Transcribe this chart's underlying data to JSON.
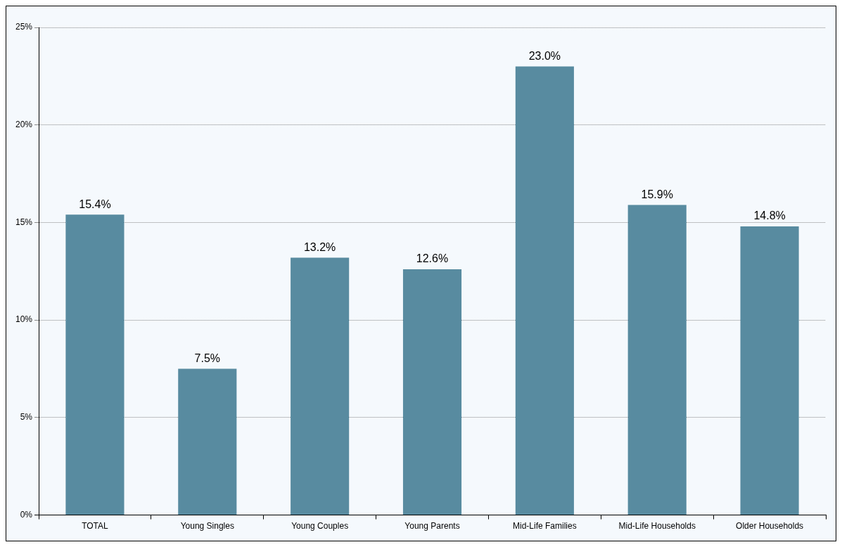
{
  "chart_data": {
    "type": "bar",
    "categories": [
      "TOTAL",
      "Young Singles",
      "Young Couples",
      "Young Parents",
      "Mid-Life Families",
      "Mid-Life Households",
      "Older Households"
    ],
    "values": [
      15.4,
      7.5,
      13.2,
      12.6,
      23.0,
      15.9,
      14.8
    ],
    "value_labels": [
      "15.4%",
      "7.5%",
      "13.2%",
      "12.6%",
      "23.0%",
      "15.9%",
      "14.8%"
    ],
    "color": "#588ba0",
    "ylim": [
      0,
      25
    ],
    "yticks": [
      {
        "value": 0,
        "label": "0%"
      },
      {
        "value": 5,
        "label": "5%"
      },
      {
        "value": 10,
        "label": "10%"
      },
      {
        "value": 15,
        "label": "15%"
      },
      {
        "value": 20,
        "label": "20%"
      },
      {
        "value": 25,
        "label": "25%"
      }
    ],
    "grid": "y",
    "legend": false
  }
}
